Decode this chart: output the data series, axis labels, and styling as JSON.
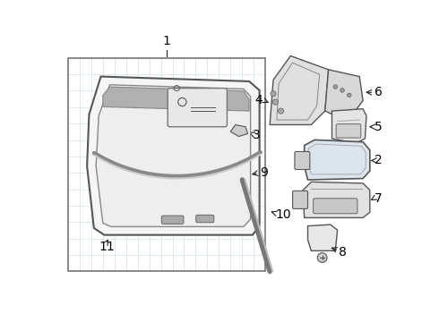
{
  "bg_color": "#ffffff",
  "grid_color": "#c8d8e8",
  "box_color": "#777777",
  "line_color": "#555555",
  "label_color": "#000000",
  "fig_width": 4.9,
  "fig_height": 3.6,
  "dpi": 100
}
